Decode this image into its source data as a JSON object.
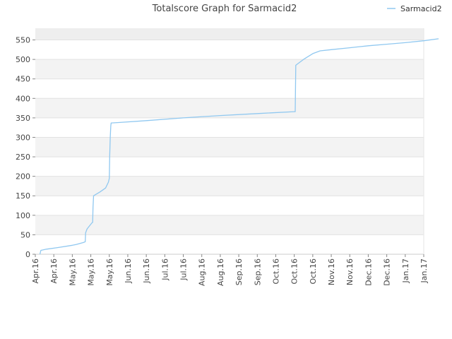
{
  "chart_data": {
    "type": "line",
    "title": "Totalscore Graph for Sarmacid2",
    "xlabel": "",
    "ylabel": "",
    "ylim": [
      0,
      580
    ],
    "y_ticks": [
      0,
      50,
      100,
      150,
      200,
      250,
      300,
      350,
      400,
      450,
      500,
      550
    ],
    "x_tick_labels": [
      "Apr.16",
      "Apr.16",
      "May.16",
      "May.16",
      "May.16",
      "Jun.16",
      "Jun.16",
      "Jul.16",
      "Jul.16",
      "Aug.16",
      "Aug.16",
      "Sep.16",
      "Sep.16",
      "Oct.16",
      "Oct.16",
      "Oct.16",
      "Nov.16",
      "Nov.16",
      "Dec.16",
      "Dec.16",
      "Jan.17",
      "Jan.17"
    ],
    "grid": "horizontal alternating bands",
    "legend_position": "top-right",
    "series": [
      {
        "name": "Sarmacid2",
        "color": "#90c8f0",
        "points": [
          [
            0.25,
            0
          ],
          [
            0.3,
            10
          ],
          [
            0.6,
            13
          ],
          [
            1.2,
            17
          ],
          [
            2.0,
            23
          ],
          [
            2.2,
            25
          ],
          [
            2.6,
            30
          ],
          [
            2.7,
            32
          ],
          [
            2.72,
            55
          ],
          [
            2.8,
            65
          ],
          [
            3.05,
            80
          ],
          [
            3.1,
            82
          ],
          [
            3.12,
            120
          ],
          [
            3.15,
            150
          ],
          [
            3.5,
            160
          ],
          [
            3.8,
            170
          ],
          [
            3.95,
            185
          ],
          [
            4.0,
            195
          ],
          [
            4.02,
            250
          ],
          [
            4.05,
            300
          ],
          [
            4.08,
            330
          ],
          [
            4.1,
            337
          ],
          [
            4.5,
            338
          ],
          [
            6.0,
            343
          ],
          [
            8.0,
            350
          ],
          [
            10.0,
            356
          ],
          [
            12.0,
            361
          ],
          [
            14.0,
            366
          ],
          [
            14.05,
            366
          ],
          [
            14.08,
            485
          ],
          [
            14.5,
            500
          ],
          [
            15.0,
            515
          ],
          [
            15.4,
            522
          ],
          [
            16.0,
            525
          ],
          [
            17.0,
            530
          ],
          [
            18.0,
            535
          ],
          [
            19.0,
            539
          ],
          [
            20.0,
            543
          ],
          [
            21.0,
            548
          ],
          [
            21.8,
            553
          ]
        ]
      }
    ]
  }
}
